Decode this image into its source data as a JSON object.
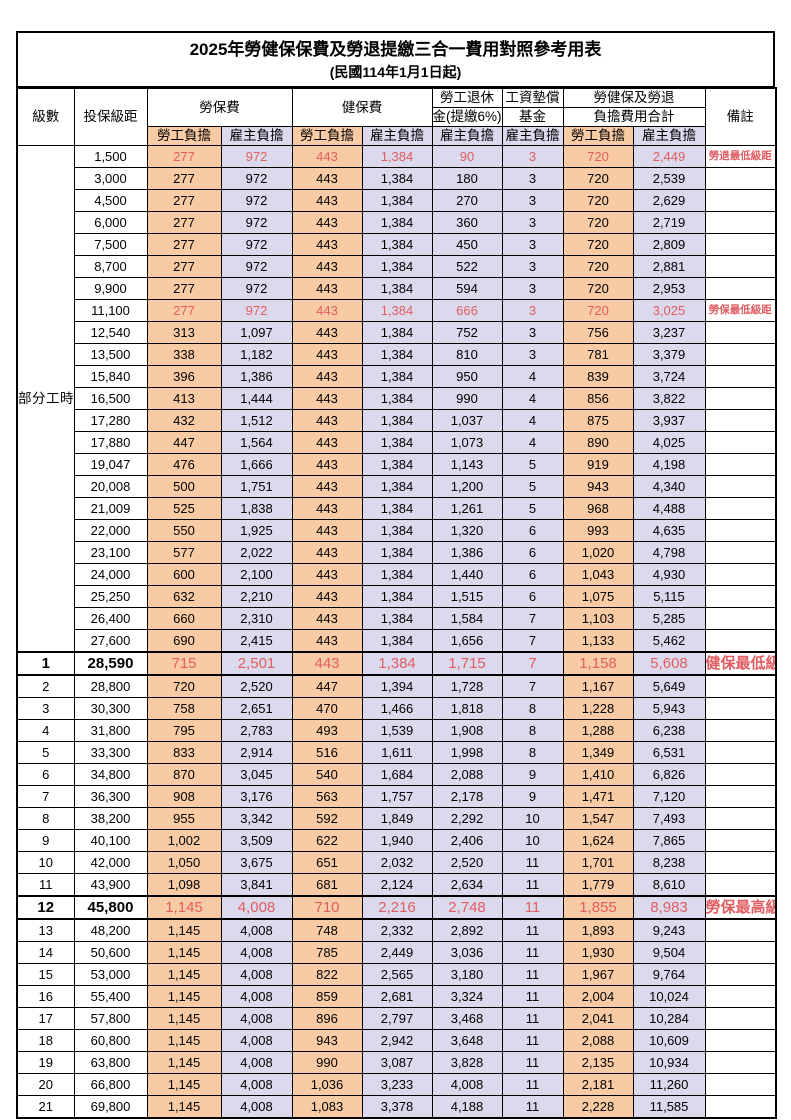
{
  "title": "2025年勞健保保費及勞退提繳三合一費用對照參考用表",
  "subtitle": "(民國114年1月1日起)",
  "header": {
    "level": "級數",
    "bracket": "投保級距",
    "labor_insurance": "勞保費",
    "health_insurance": "健保費",
    "pension_line1": "勞工退休",
    "pension_line2": "金(提繳6%)",
    "wage_fund_line1": "工資墊償",
    "wage_fund_line2": "基金",
    "total_line1": "勞健保及勞退",
    "total_line2": "負擔費用合計",
    "remark": "備註",
    "employee_label": "勞工負擔",
    "employer_label": "雇主負擔"
  },
  "part_time": {
    "label": "部分工時",
    "span": 23
  },
  "colors": {
    "employee_bg": "#f8cba4",
    "employer_bg": "#dcd9ec",
    "highlight_red": "#e05d62"
  },
  "rows": [
    {
      "level": null,
      "bracket": "1,500",
      "values": [
        "277",
        "972",
        "443",
        "1,384",
        "90",
        "3",
        "720",
        "2,449"
      ],
      "remark": "勞退最低級距",
      "red": true,
      "big": false
    },
    {
      "level": null,
      "bracket": "3,000",
      "values": [
        "277",
        "972",
        "443",
        "1,384",
        "180",
        "3",
        "720",
        "2,539"
      ],
      "remark": "",
      "red": false,
      "big": false
    },
    {
      "level": null,
      "bracket": "4,500",
      "values": [
        "277",
        "972",
        "443",
        "1,384",
        "270",
        "3",
        "720",
        "2,629"
      ],
      "remark": "",
      "red": false,
      "big": false
    },
    {
      "level": null,
      "bracket": "6,000",
      "values": [
        "277",
        "972",
        "443",
        "1,384",
        "360",
        "3",
        "720",
        "2,719"
      ],
      "remark": "",
      "red": false,
      "big": false
    },
    {
      "level": null,
      "bracket": "7,500",
      "values": [
        "277",
        "972",
        "443",
        "1,384",
        "450",
        "3",
        "720",
        "2,809"
      ],
      "remark": "",
      "red": false,
      "big": false
    },
    {
      "level": null,
      "bracket": "8,700",
      "values": [
        "277",
        "972",
        "443",
        "1,384",
        "522",
        "3",
        "720",
        "2,881"
      ],
      "remark": "",
      "red": false,
      "big": false
    },
    {
      "level": null,
      "bracket": "9,900",
      "values": [
        "277",
        "972",
        "443",
        "1,384",
        "594",
        "3",
        "720",
        "2,953"
      ],
      "remark": "",
      "red": false,
      "big": false
    },
    {
      "level": null,
      "bracket": "11,100",
      "values": [
        "277",
        "972",
        "443",
        "1,384",
        "666",
        "3",
        "720",
        "3,025"
      ],
      "remark": "勞保最低級距",
      "red": true,
      "big": false
    },
    {
      "level": null,
      "bracket": "12,540",
      "values": [
        "313",
        "1,097",
        "443",
        "1,384",
        "752",
        "3",
        "756",
        "3,237"
      ],
      "remark": "",
      "red": false,
      "big": false
    },
    {
      "level": null,
      "bracket": "13,500",
      "values": [
        "338",
        "1,182",
        "443",
        "1,384",
        "810",
        "3",
        "781",
        "3,379"
      ],
      "remark": "",
      "red": false,
      "big": false
    },
    {
      "level": null,
      "bracket": "15,840",
      "values": [
        "396",
        "1,386",
        "443",
        "1,384",
        "950",
        "4",
        "839",
        "3,724"
      ],
      "remark": "",
      "red": false,
      "big": false
    },
    {
      "level": null,
      "bracket": "16,500",
      "values": [
        "413",
        "1,444",
        "443",
        "1,384",
        "990",
        "4",
        "856",
        "3,822"
      ],
      "remark": "",
      "red": false,
      "big": false
    },
    {
      "level": null,
      "bracket": "17,280",
      "values": [
        "432",
        "1,512",
        "443",
        "1,384",
        "1,037",
        "4",
        "875",
        "3,937"
      ],
      "remark": "",
      "red": false,
      "big": false
    },
    {
      "level": null,
      "bracket": "17,880",
      "values": [
        "447",
        "1,564",
        "443",
        "1,384",
        "1,073",
        "4",
        "890",
        "4,025"
      ],
      "remark": "",
      "red": false,
      "big": false
    },
    {
      "level": null,
      "bracket": "19,047",
      "values": [
        "476",
        "1,666",
        "443",
        "1,384",
        "1,143",
        "5",
        "919",
        "4,198"
      ],
      "remark": "",
      "red": false,
      "big": false
    },
    {
      "level": null,
      "bracket": "20,008",
      "values": [
        "500",
        "1,751",
        "443",
        "1,384",
        "1,200",
        "5",
        "943",
        "4,340"
      ],
      "remark": "",
      "red": false,
      "big": false
    },
    {
      "level": null,
      "bracket": "21,009",
      "values": [
        "525",
        "1,838",
        "443",
        "1,384",
        "1,261",
        "5",
        "968",
        "4,488"
      ],
      "remark": "",
      "red": false,
      "big": false
    },
    {
      "level": null,
      "bracket": "22,000",
      "values": [
        "550",
        "1,925",
        "443",
        "1,384",
        "1,320",
        "6",
        "993",
        "4,635"
      ],
      "remark": "",
      "red": false,
      "big": false
    },
    {
      "level": null,
      "bracket": "23,100",
      "values": [
        "577",
        "2,022",
        "443",
        "1,384",
        "1,386",
        "6",
        "1,020",
        "4,798"
      ],
      "remark": "",
      "red": false,
      "big": false
    },
    {
      "level": null,
      "bracket": "24,000",
      "values": [
        "600",
        "2,100",
        "443",
        "1,384",
        "1,440",
        "6",
        "1,043",
        "4,930"
      ],
      "remark": "",
      "red": false,
      "big": false
    },
    {
      "level": null,
      "bracket": "25,250",
      "values": [
        "632",
        "2,210",
        "443",
        "1,384",
        "1,515",
        "6",
        "1,075",
        "5,115"
      ],
      "remark": "",
      "red": false,
      "big": false
    },
    {
      "level": null,
      "bracket": "26,400",
      "values": [
        "660",
        "2,310",
        "443",
        "1,384",
        "1,584",
        "7",
        "1,103",
        "5,285"
      ],
      "remark": "",
      "red": false,
      "big": false
    },
    {
      "level": null,
      "bracket": "27,600",
      "values": [
        "690",
        "2,415",
        "443",
        "1,384",
        "1,656",
        "7",
        "1,133",
        "5,462"
      ],
      "remark": "",
      "red": false,
      "big": false
    },
    {
      "level": "1",
      "bracket": "28,590",
      "values": [
        "715",
        "2,501",
        "443",
        "1,384",
        "1,715",
        "7",
        "1,158",
        "5,608"
      ],
      "remark": "健保最低級距",
      "red": true,
      "big": true
    },
    {
      "level": "2",
      "bracket": "28,800",
      "values": [
        "720",
        "2,520",
        "447",
        "1,394",
        "1,728",
        "7",
        "1,167",
        "5,649"
      ],
      "remark": "",
      "red": false,
      "big": false
    },
    {
      "level": "3",
      "bracket": "30,300",
      "values": [
        "758",
        "2,651",
        "470",
        "1,466",
        "1,818",
        "8",
        "1,228",
        "5,943"
      ],
      "remark": "",
      "red": false,
      "big": false
    },
    {
      "level": "4",
      "bracket": "31,800",
      "values": [
        "795",
        "2,783",
        "493",
        "1,539",
        "1,908",
        "8",
        "1,288",
        "6,238"
      ],
      "remark": "",
      "red": false,
      "big": false
    },
    {
      "level": "5",
      "bracket": "33,300",
      "values": [
        "833",
        "2,914",
        "516",
        "1,611",
        "1,998",
        "8",
        "1,349",
        "6,531"
      ],
      "remark": "",
      "red": false,
      "big": false
    },
    {
      "level": "6",
      "bracket": "34,800",
      "values": [
        "870",
        "3,045",
        "540",
        "1,684",
        "2,088",
        "9",
        "1,410",
        "6,826"
      ],
      "remark": "",
      "red": false,
      "big": false
    },
    {
      "level": "7",
      "bracket": "36,300",
      "values": [
        "908",
        "3,176",
        "563",
        "1,757",
        "2,178",
        "9",
        "1,471",
        "7,120"
      ],
      "remark": "",
      "red": false,
      "big": false
    },
    {
      "level": "8",
      "bracket": "38,200",
      "values": [
        "955",
        "3,342",
        "592",
        "1,849",
        "2,292",
        "10",
        "1,547",
        "7,493"
      ],
      "remark": "",
      "red": false,
      "big": false
    },
    {
      "level": "9",
      "bracket": "40,100",
      "values": [
        "1,002",
        "3,509",
        "622",
        "1,940",
        "2,406",
        "10",
        "1,624",
        "7,865"
      ],
      "remark": "",
      "red": false,
      "big": false
    },
    {
      "level": "10",
      "bracket": "42,000",
      "values": [
        "1,050",
        "3,675",
        "651",
        "2,032",
        "2,520",
        "11",
        "1,701",
        "8,238"
      ],
      "remark": "",
      "red": false,
      "big": false
    },
    {
      "level": "11",
      "bracket": "43,900",
      "values": [
        "1,098",
        "3,841",
        "681",
        "2,124",
        "2,634",
        "11",
        "1,779",
        "8,610"
      ],
      "remark": "",
      "red": false,
      "big": false
    },
    {
      "level": "12",
      "bracket": "45,800",
      "values": [
        "1,145",
        "4,008",
        "710",
        "2,216",
        "2,748",
        "11",
        "1,855",
        "8,983"
      ],
      "remark": "勞保最高級距",
      "red": true,
      "big": true
    },
    {
      "level": "13",
      "bracket": "48,200",
      "values": [
        "1,145",
        "4,008",
        "748",
        "2,332",
        "2,892",
        "11",
        "1,893",
        "9,243"
      ],
      "remark": "",
      "red": false,
      "big": false
    },
    {
      "level": "14",
      "bracket": "50,600",
      "values": [
        "1,145",
        "4,008",
        "785",
        "2,449",
        "3,036",
        "11",
        "1,930",
        "9,504"
      ],
      "remark": "",
      "red": false,
      "big": false
    },
    {
      "level": "15",
      "bracket": "53,000",
      "values": [
        "1,145",
        "4,008",
        "822",
        "2,565",
        "3,180",
        "11",
        "1,967",
        "9,764"
      ],
      "remark": "",
      "red": false,
      "big": false
    },
    {
      "level": "16",
      "bracket": "55,400",
      "values": [
        "1,145",
        "4,008",
        "859",
        "2,681",
        "3,324",
        "11",
        "2,004",
        "10,024"
      ],
      "remark": "",
      "red": false,
      "big": false
    },
    {
      "level": "17",
      "bracket": "57,800",
      "values": [
        "1,145",
        "4,008",
        "896",
        "2,797",
        "3,468",
        "11",
        "2,041",
        "10,284"
      ],
      "remark": "",
      "red": false,
      "big": false
    },
    {
      "level": "18",
      "bracket": "60,800",
      "values": [
        "1,145",
        "4,008",
        "943",
        "2,942",
        "3,648",
        "11",
        "2,088",
        "10,609"
      ],
      "remark": "",
      "red": false,
      "big": false
    },
    {
      "level": "19",
      "bracket": "63,800",
      "values": [
        "1,145",
        "4,008",
        "990",
        "3,087",
        "3,828",
        "11",
        "2,135",
        "10,934"
      ],
      "remark": "",
      "red": false,
      "big": false
    },
    {
      "level": "20",
      "bracket": "66,800",
      "values": [
        "1,145",
        "4,008",
        "1,036",
        "3,233",
        "4,008",
        "11",
        "2,181",
        "11,260"
      ],
      "remark": "",
      "red": false,
      "big": false
    },
    {
      "level": "21",
      "bracket": "69,800",
      "values": [
        "1,145",
        "4,008",
        "1,083",
        "3,378",
        "4,188",
        "11",
        "2,228",
        "11,585"
      ],
      "remark": "",
      "red": false,
      "big": false
    }
  ]
}
